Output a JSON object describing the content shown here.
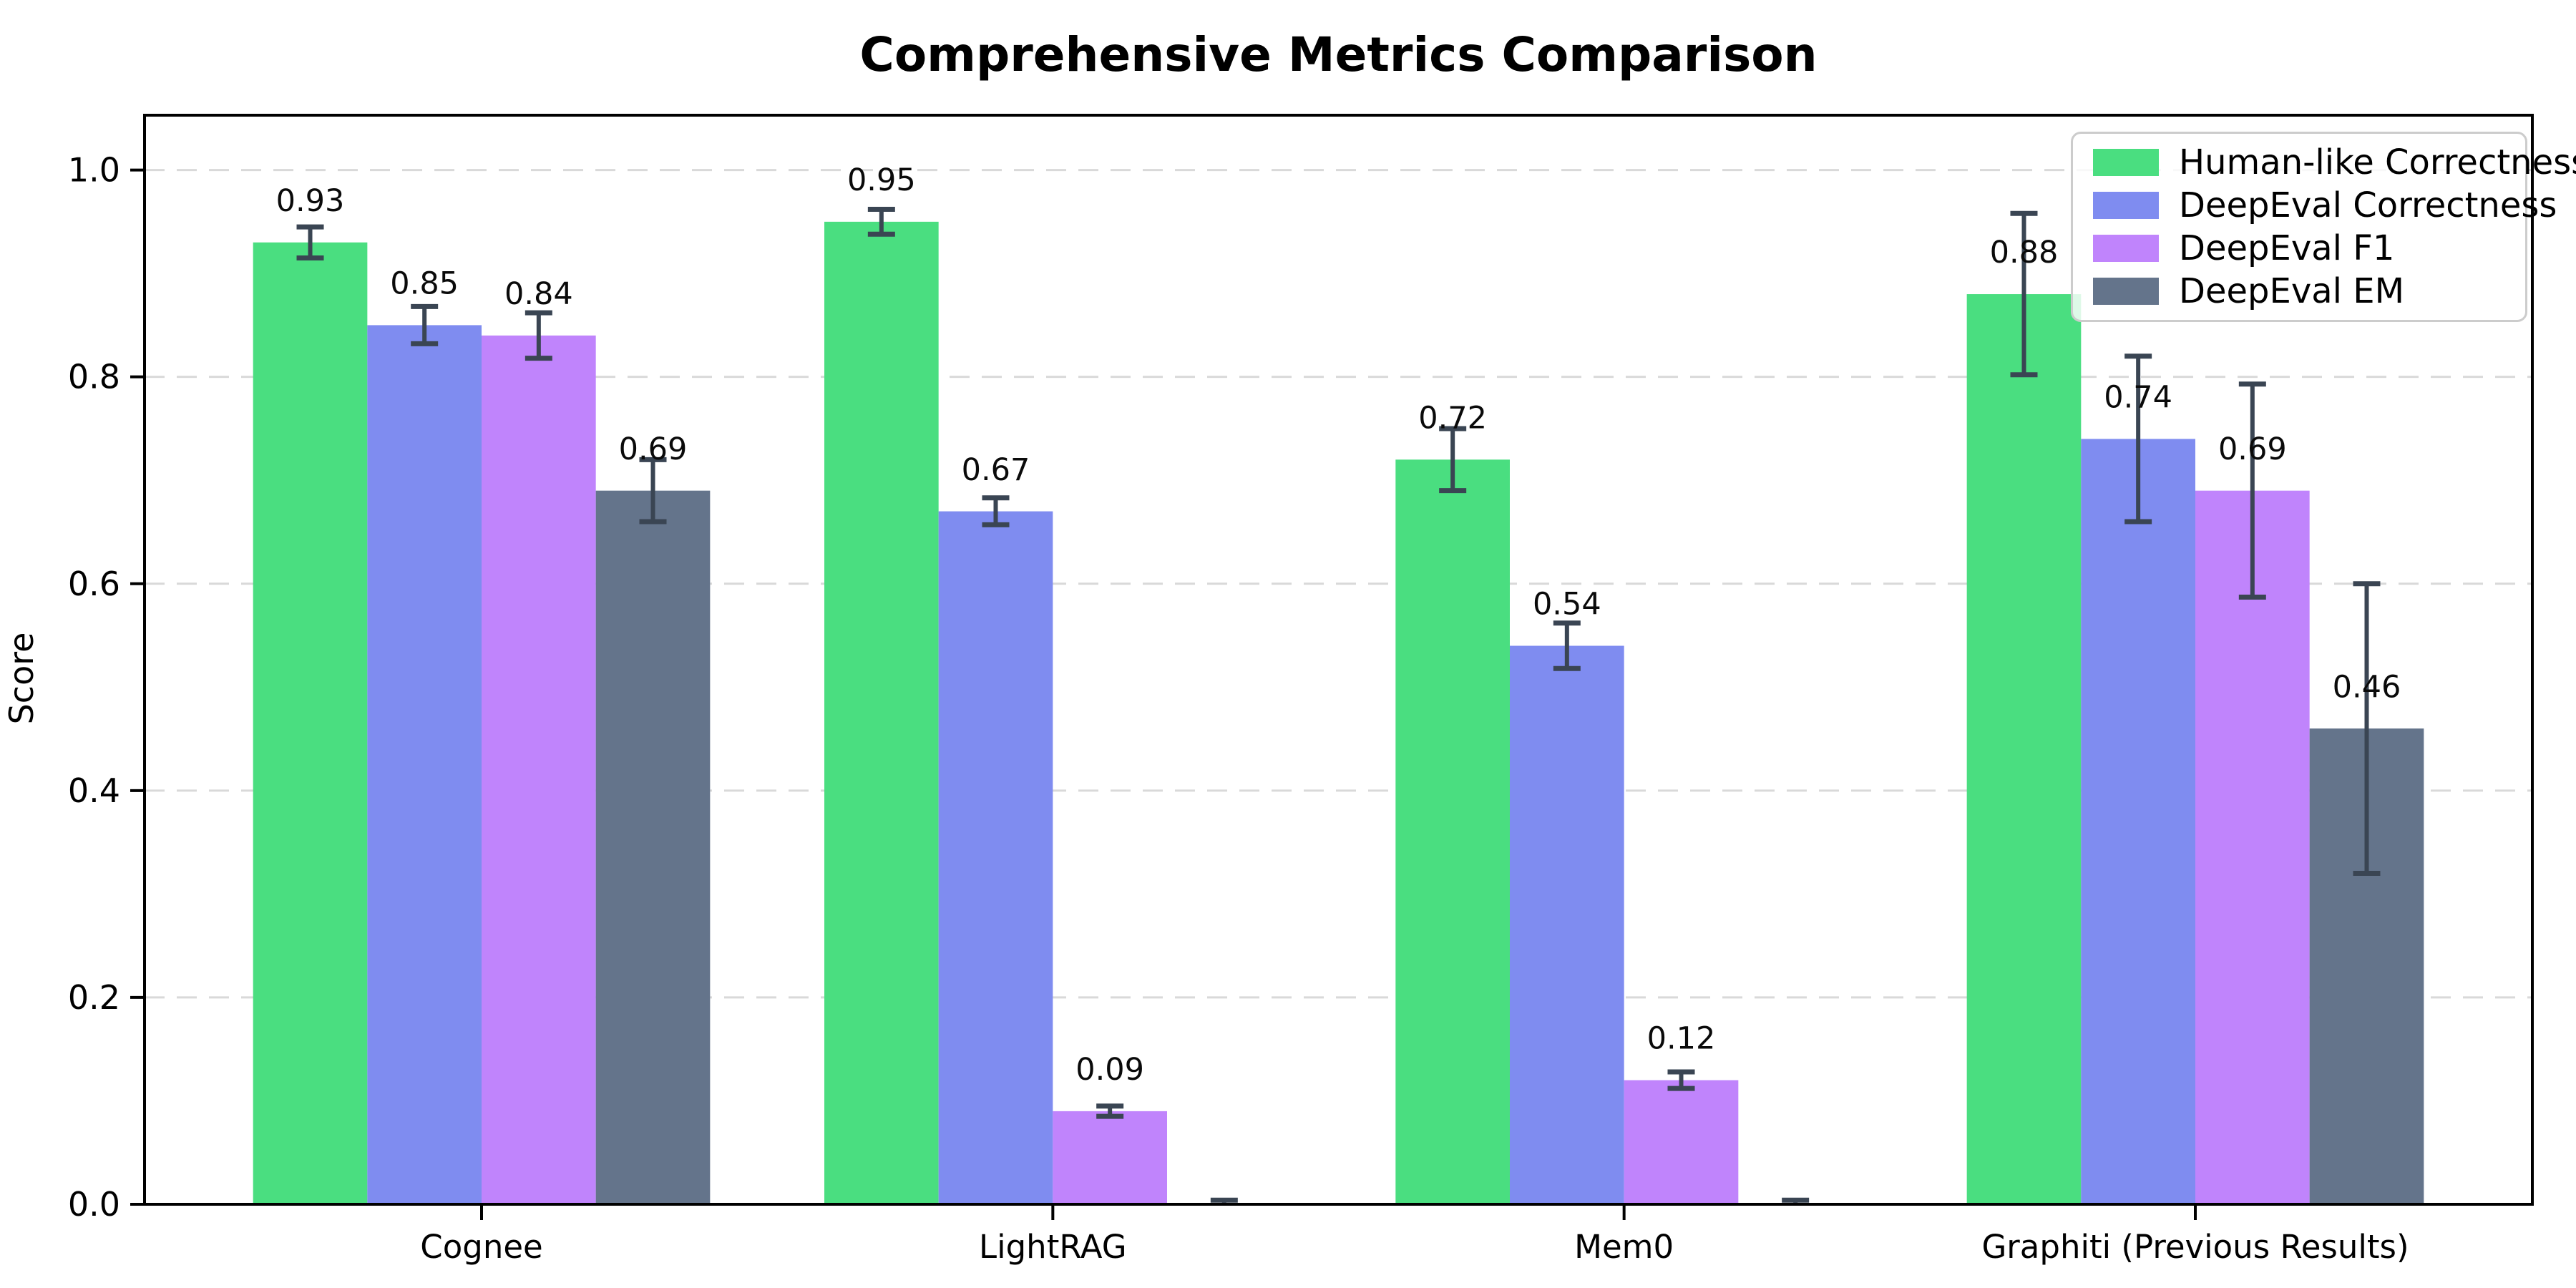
{
  "figure": {
    "title": "Comprehensive Metrics Comparison",
    "y_axis_label": "Score"
  },
  "chart_data": {
    "type": "bar",
    "title": "Comprehensive Metrics Comparison",
    "xlabel": "",
    "ylabel": "Score",
    "categories": [
      "Cognee",
      "LightRAG",
      "Mem0",
      "Graphiti (Previous Results)"
    ],
    "series": [
      {
        "name": "Human-like Correctness",
        "color": "#4ade80",
        "values": [
          0.93,
          0.95,
          0.72,
          0.88
        ],
        "errors": [
          0.015,
          0.012,
          0.03,
          0.078
        ]
      },
      {
        "name": "DeepEval Correctness",
        "color": "#7f8cf0",
        "values": [
          0.85,
          0.67,
          0.54,
          0.74
        ],
        "errors": [
          0.018,
          0.013,
          0.022,
          0.08
        ]
      },
      {
        "name": "DeepEval F1",
        "color": "#c084fc",
        "values": [
          0.84,
          0.09,
          0.12,
          0.69
        ],
        "errors": [
          0.022,
          0.005,
          0.008,
          0.103
        ]
      },
      {
        "name": "DeepEval EM",
        "color": "#64748b",
        "values": [
          0.69,
          0.0,
          0.0,
          0.46
        ],
        "errors": [
          0.03,
          0.004,
          0.004,
          0.14
        ]
      }
    ],
    "bar_label_format": "0.00",
    "show_zero_value_labels": false,
    "yticks": [
      0.0,
      0.2,
      0.4,
      0.6,
      0.8,
      1.0
    ],
    "ytick_labels": [
      "0.0",
      "0.2",
      "0.4",
      "0.6",
      "0.8",
      "1.0"
    ],
    "ylim": [
      0.0,
      1.053
    ],
    "grid": {
      "axis": "y",
      "style": "dashed",
      "color": "#d9d9d9"
    },
    "legend_position": "upper right",
    "error_bar_color": "#3a4553",
    "axis_color": "#000000",
    "bar_width_units": 0.2,
    "group_offsets_units": [
      -0.3,
      -0.1,
      0.1,
      0.3
    ]
  },
  "layout_text": {
    "legend_title": ""
  }
}
